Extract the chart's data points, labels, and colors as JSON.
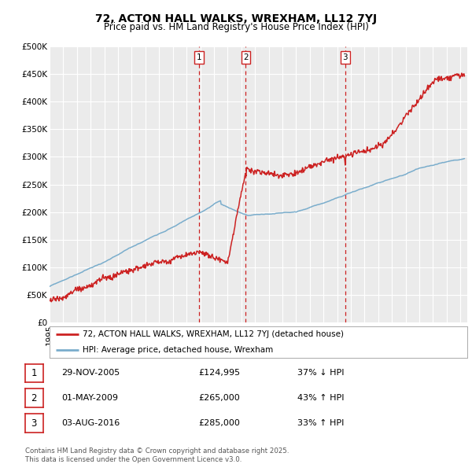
{
  "title": "72, ACTON HALL WALKS, WREXHAM, LL12 7YJ",
  "subtitle": "Price paid vs. HM Land Registry's House Price Index (HPI)",
  "ylabel_ticks": [
    "£0",
    "£50K",
    "£100K",
    "£150K",
    "£200K",
    "£250K",
    "£300K",
    "£350K",
    "£400K",
    "£450K",
    "£500K"
  ],
  "ytick_values": [
    0,
    50000,
    100000,
    150000,
    200000,
    250000,
    300000,
    350000,
    400000,
    450000,
    500000
  ],
  "ylim": [
    0,
    500000
  ],
  "xlim_start": 1995.0,
  "xlim_end": 2025.5,
  "background_color": "#ffffff",
  "plot_bg_color": "#ebebeb",
  "grid_color": "#ffffff",
  "red_color": "#cc2222",
  "blue_color": "#7aadcc",
  "sale_dates": [
    2005.91,
    2009.33,
    2016.59
  ],
  "sale_prices": [
    124995,
    265000,
    285000
  ],
  "sale_labels": [
    "1",
    "2",
    "3"
  ],
  "vline_color": "#cc2222",
  "legend_entries": [
    "72, ACTON HALL WALKS, WREXHAM, LL12 7YJ (detached house)",
    "HPI: Average price, detached house, Wrexham"
  ],
  "table_rows": [
    [
      "1",
      "29-NOV-2005",
      "£124,995",
      "37% ↓ HPI"
    ],
    [
      "2",
      "01-MAY-2009",
      "£265,000",
      "43% ↑ HPI"
    ],
    [
      "3",
      "03-AUG-2016",
      "£285,000",
      "33% ↑ HPI"
    ]
  ],
  "footer": "Contains HM Land Registry data © Crown copyright and database right 2025.\nThis data is licensed under the Open Government Licence v3.0.",
  "title_fontsize": 10,
  "subtitle_fontsize": 8.5,
  "tick_fontsize": 7.5
}
